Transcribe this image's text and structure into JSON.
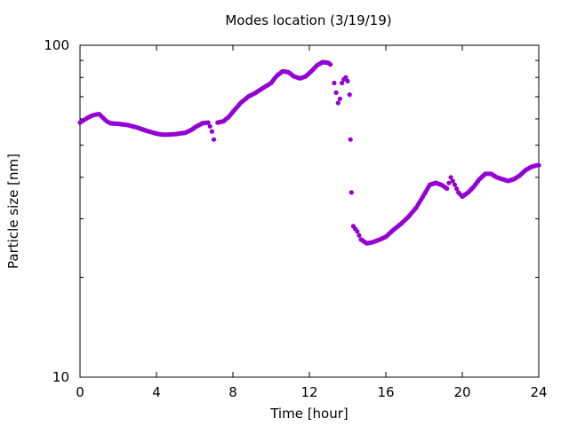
{
  "chart_data": {
    "type": "scatter",
    "title": "Modes location (3/19/19)",
    "xlabel": "Time [hour]",
    "ylabel": "Particle size [nm]",
    "xlim": [
      0,
      24
    ],
    "ylim": [
      10,
      100
    ],
    "yscale": "log",
    "x_ticks": [
      0,
      4,
      8,
      12,
      16,
      20,
      24
    ],
    "y_ticks": [
      10,
      100
    ],
    "x_tick_labels": [
      "0",
      "4",
      "8",
      "12",
      "16",
      "20",
      "24"
    ],
    "y_tick_labels": [
      "10",
      "100"
    ],
    "grid": false,
    "marker_color": "#9400d3",
    "series": [
      {
        "anchors": [
          [
            0.0,
            58.5
          ],
          [
            0.2,
            59.5
          ],
          [
            0.4,
            60.5
          ],
          [
            0.6,
            61.3
          ],
          [
            0.8,
            61.8
          ],
          [
            1.0,
            62.0
          ],
          [
            1.2,
            60.5
          ],
          [
            1.4,
            59.0
          ],
          [
            1.6,
            58.2
          ],
          [
            2.0,
            58.0
          ],
          [
            2.5,
            57.5
          ],
          [
            3.0,
            56.5
          ],
          [
            3.5,
            55.2
          ],
          [
            4.0,
            54.2
          ],
          [
            4.3,
            53.8
          ],
          [
            4.6,
            53.8
          ],
          [
            5.0,
            54.0
          ],
          [
            5.5,
            54.5
          ],
          [
            5.8,
            55.5
          ],
          [
            6.1,
            57.0
          ],
          [
            6.4,
            58.2
          ],
          [
            6.7,
            58.5
          ],
          [
            6.8,
            57.0
          ],
          [
            6.9,
            55.0
          ],
          [
            7.0,
            52.0
          ],
          [
            7.2,
            58.5
          ],
          [
            7.5,
            59.0
          ],
          [
            7.8,
            61.0
          ],
          [
            8.1,
            64.0
          ],
          [
            8.4,
            67.0
          ],
          [
            8.8,
            70.0
          ],
          [
            9.2,
            72.0
          ],
          [
            9.6,
            74.5
          ],
          [
            10.0,
            77.0
          ],
          [
            10.3,
            81.0
          ],
          [
            10.6,
            83.5
          ],
          [
            10.9,
            83.0
          ],
          [
            11.2,
            80.5
          ],
          [
            11.5,
            79.5
          ],
          [
            11.8,
            80.5
          ],
          [
            12.1,
            83.5
          ],
          [
            12.4,
            87.0
          ],
          [
            12.7,
            89.0
          ],
          [
            13.0,
            88.5
          ],
          [
            13.1,
            87.5
          ],
          [
            13.3,
            77.0
          ],
          [
            13.4,
            72.0
          ],
          [
            13.5,
            67.0
          ],
          [
            13.6,
            69.0
          ],
          [
            13.7,
            77.0
          ],
          [
            13.8,
            79.0
          ],
          [
            13.9,
            80.0
          ],
          [
            14.0,
            78.0
          ],
          [
            14.1,
            71.0
          ],
          [
            14.15,
            52.0
          ],
          [
            14.2,
            36.0
          ],
          [
            14.3,
            28.5
          ],
          [
            14.5,
            27.5
          ],
          [
            14.7,
            26.0
          ],
          [
            15.0,
            25.3
          ],
          [
            15.3,
            25.5
          ],
          [
            15.7,
            26.0
          ],
          [
            16.0,
            26.5
          ],
          [
            16.4,
            27.8
          ],
          [
            16.8,
            29.0
          ],
          [
            17.2,
            30.5
          ],
          [
            17.6,
            32.5
          ],
          [
            18.0,
            35.5
          ],
          [
            18.3,
            38.0
          ],
          [
            18.6,
            38.5
          ],
          [
            18.9,
            38.0
          ],
          [
            19.2,
            37.0
          ],
          [
            19.4,
            40.0
          ],
          [
            19.6,
            38.0
          ],
          [
            19.8,
            36.0
          ],
          [
            20.0,
            35.0
          ],
          [
            20.3,
            36.0
          ],
          [
            20.6,
            37.5
          ],
          [
            20.9,
            39.5
          ],
          [
            21.2,
            41.0
          ],
          [
            21.5,
            41.0
          ],
          [
            21.8,
            40.0
          ],
          [
            22.1,
            39.5
          ],
          [
            22.4,
            39.0
          ],
          [
            22.7,
            39.5
          ],
          [
            23.0,
            40.5
          ],
          [
            23.3,
            42.0
          ],
          [
            23.6,
            43.0
          ],
          [
            23.9,
            43.5
          ],
          [
            24.0,
            43.5
          ]
        ],
        "breaks_after_x": [
          7.0,
          13.1,
          14.2
        ]
      }
    ]
  }
}
